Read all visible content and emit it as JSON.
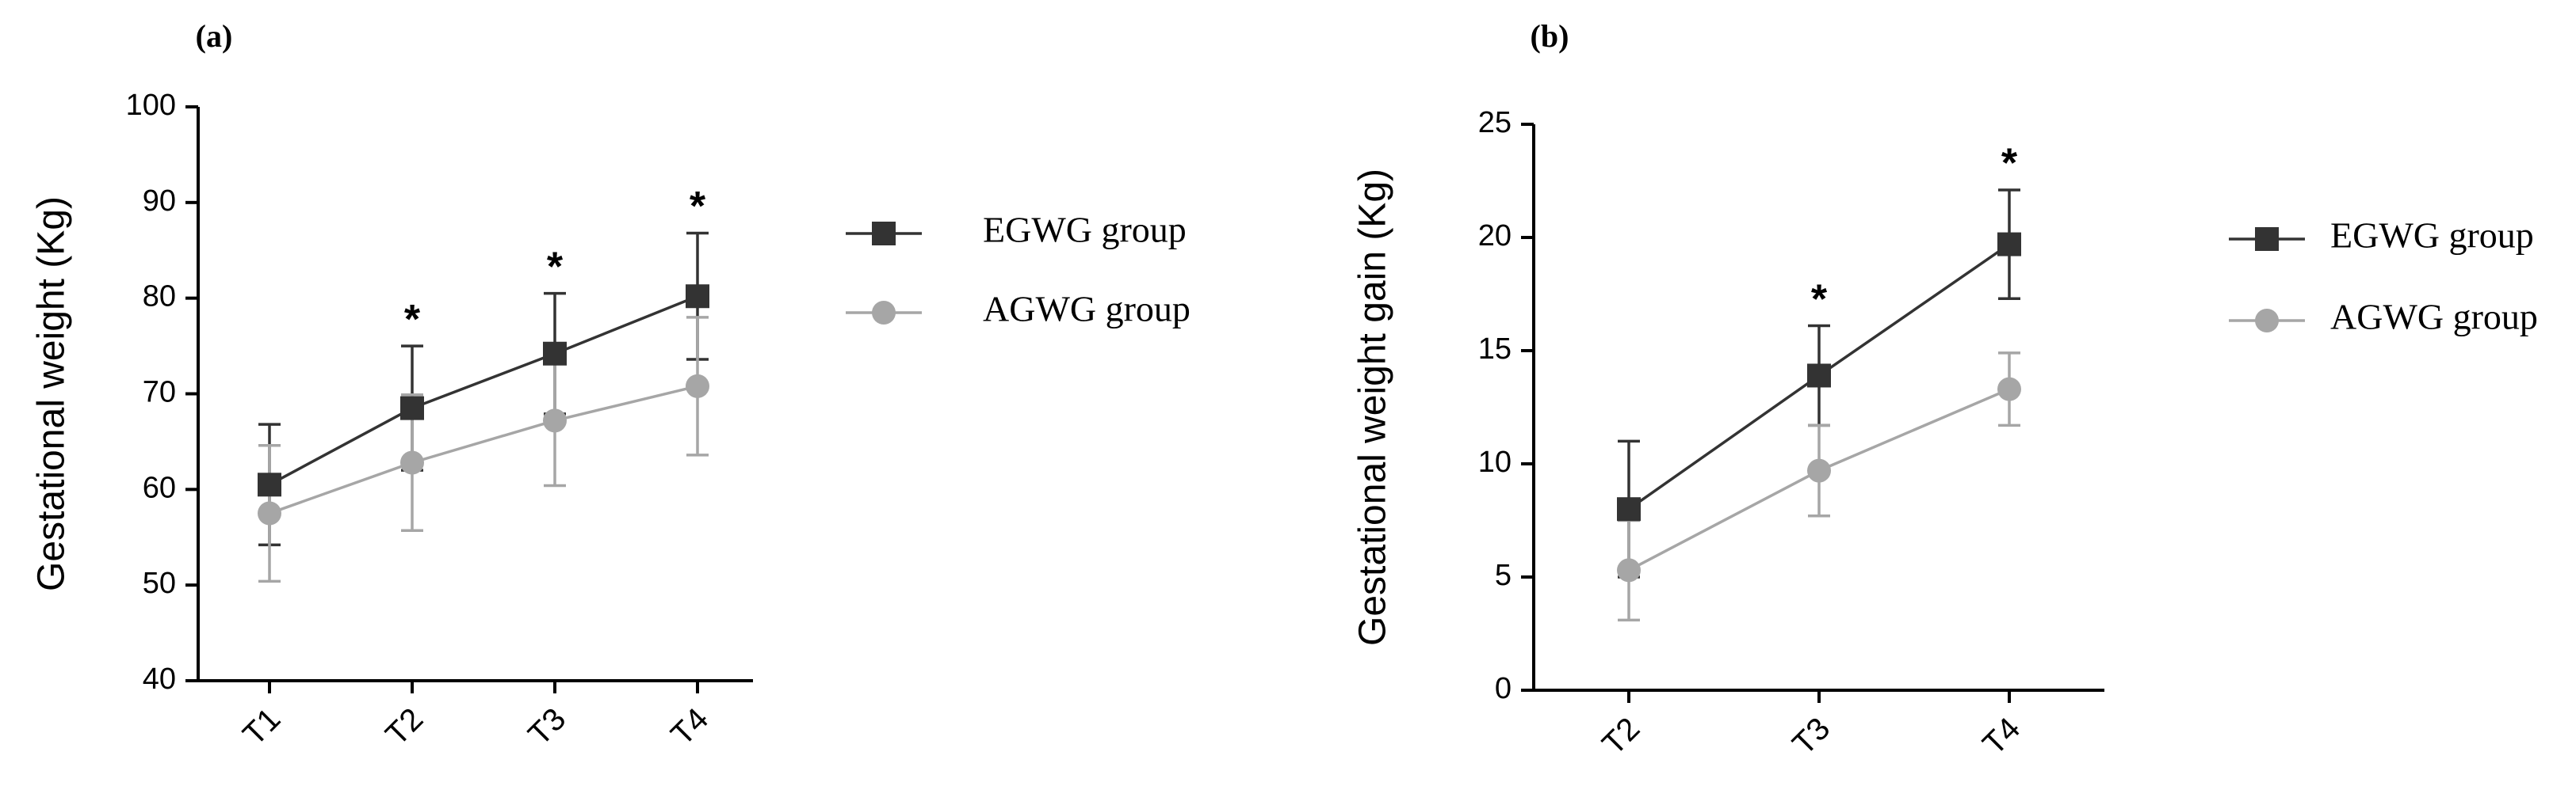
{
  "chart_data": [
    {
      "panel_label": "(a)",
      "type": "line",
      "categories": [
        "T1",
        "T2",
        "T3",
        "T4"
      ],
      "xlabel": "",
      "ylabel": "Gestational weight (Kg)",
      "ylim": [
        40,
        100
      ],
      "yticks": [
        40,
        50,
        60,
        70,
        80,
        90,
        100
      ],
      "grid": false,
      "legend_position": "right",
      "significance_marker": "*",
      "significant_categories": [
        "T2",
        "T3",
        "T4"
      ],
      "series": [
        {
          "name": "EGWG group",
          "marker": "square",
          "color": "#333333",
          "values": [
            60.5,
            68.5,
            74.2,
            80.2
          ],
          "error": [
            6.3,
            6.5,
            6.3,
            6.6
          ]
        },
        {
          "name": "AGWG group",
          "marker": "circle",
          "color": "#a6a6a6",
          "values": [
            57.5,
            62.8,
            67.2,
            70.8
          ],
          "error": [
            7.1,
            7.1,
            6.8,
            7.2
          ]
        }
      ]
    },
    {
      "panel_label": "(b)",
      "type": "line",
      "categories": [
        "T2",
        "T3",
        "T4"
      ],
      "xlabel": "",
      "ylabel": "Gestational weight gain (Kg)",
      "ylim": [
        0,
        25
      ],
      "yticks": [
        0,
        5,
        10,
        15,
        20,
        25
      ],
      "grid": false,
      "legend_position": "right",
      "significance_marker": "*",
      "significant_categories": [
        "T3",
        "T4"
      ],
      "series": [
        {
          "name": "EGWG group",
          "marker": "square",
          "color": "#333333",
          "values": [
            8.0,
            13.9,
            19.7
          ],
          "error": [
            3.0,
            2.2,
            2.4
          ]
        },
        {
          "name": "AGWG group",
          "marker": "circle",
          "color": "#a6a6a6",
          "values": [
            5.3,
            9.7,
            13.3
          ],
          "error": [
            2.2,
            2.0,
            1.6
          ]
        }
      ]
    }
  ]
}
